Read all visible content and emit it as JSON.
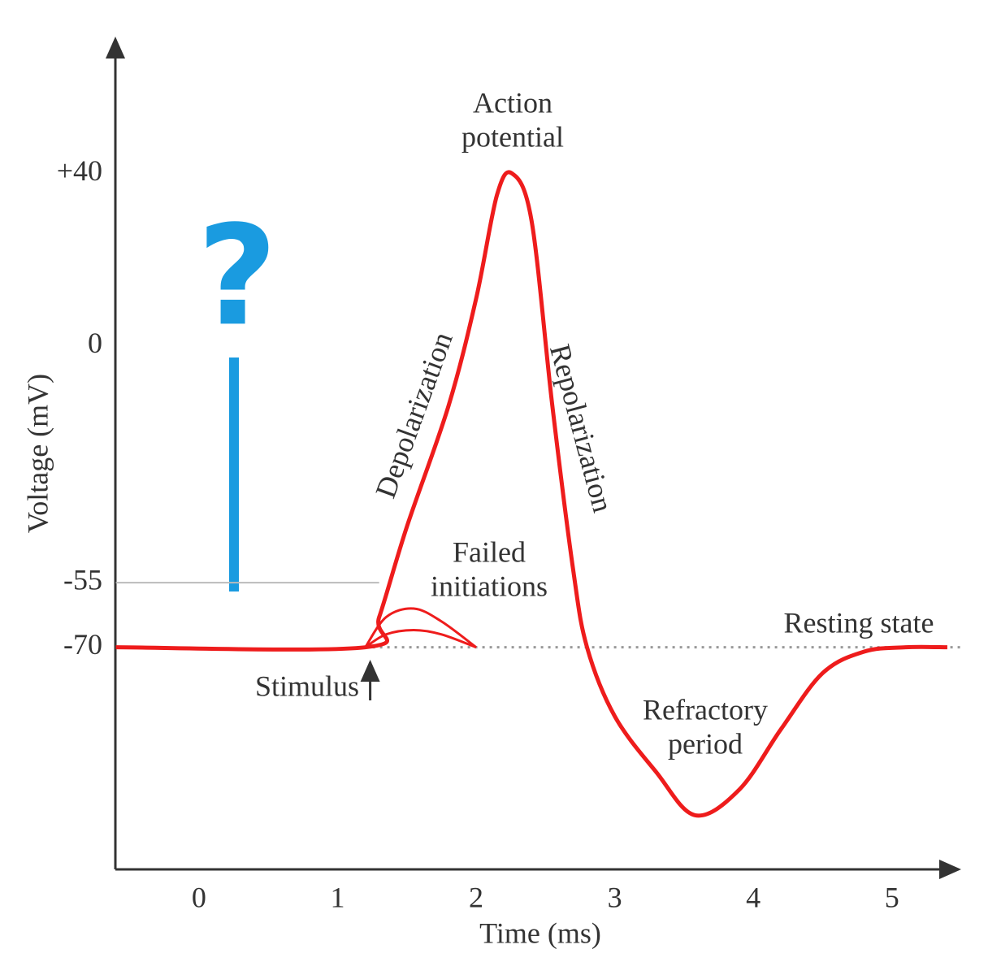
{
  "chart_data": {
    "type": "line",
    "x_label": "Time (ms)",
    "y_label": "Voltage (mV)",
    "xlim": [
      -0.6,
      5.5
    ],
    "ylim": [
      -121,
      72
    ],
    "xticks": [
      0,
      1,
      2,
      3,
      4,
      5
    ],
    "yticks": [
      -70,
      -55,
      0,
      {
        "value": 40,
        "label": "+40"
      }
    ],
    "series": [
      {
        "color": "#ee1c1c",
        "x": [
          -0.6,
          1.2,
          1.3,
          1.5,
          1.8,
          2.0,
          2.15,
          2.26,
          2.4,
          2.55,
          2.7,
          2.8,
          3.0,
          3.3,
          3.58,
          3.9,
          4.2,
          4.5,
          4.8,
          5.1,
          5.4
        ],
        "values": [
          -70,
          -70,
          -63,
          -42,
          -14,
          11,
          35,
          40,
          29,
          -14,
          -52,
          -70,
          -86,
          -99,
          -109,
          -103,
          -89,
          -76,
          -71,
          -70,
          -70
        ]
      },
      {
        "color": "#ee1c1c",
        "x": [
          1.2,
          1.35,
          1.55,
          1.75,
          2.0
        ],
        "values": [
          -70,
          -63,
          -61,
          -64,
          -70
        ]
      },
      {
        "color": "#ee1c1c",
        "x": [
          1.2,
          1.35,
          1.55,
          1.75,
          2.0
        ],
        "values": [
          -70,
          -67,
          -66,
          -67,
          -70
        ]
      }
    ],
    "annotations": [
      [
        "Action",
        "potential"
      ],
      [
        "Depolarization"
      ],
      [
        "Repolarization"
      ],
      [
        "Failed",
        "initiations"
      ],
      [
        "Resting state"
      ],
      [
        "Refractory",
        "period"
      ],
      [
        "Stimulus"
      ]
    ],
    "question_mark": "?"
  }
}
